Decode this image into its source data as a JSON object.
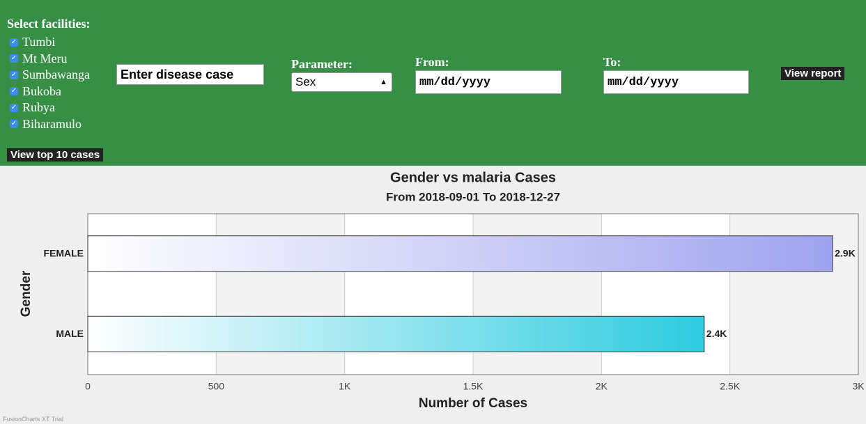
{
  "form": {
    "facilities_label": "Select facilities:",
    "facilities": [
      "Tumbi",
      "Mt Meru",
      "Sumbawanga",
      "Bukoba",
      "Rubya",
      "Biharamulo"
    ],
    "top_button": "View top 10 cases",
    "disease_input": "Enter disease case",
    "parameter_label": "Parameter:",
    "parameter_value": "Sex",
    "from_label": "From:",
    "from_placeholder": "mm/dd/yyyy",
    "to_label": "To:",
    "to_placeholder": "mm/dd/yyyy",
    "report_button": "View report"
  },
  "chart_data": {
    "type": "bar",
    "orientation": "horizontal",
    "title": "Gender vs malaria Cases",
    "subtitle": "From 2018-09-01 To 2018-12-27",
    "x_label": "Number of Cases",
    "y_label": "Gender",
    "categories": [
      "FEMALE",
      "MALE"
    ],
    "values": [
      2900,
      2400
    ],
    "value_labels": [
      "2.9K",
      "2.4K"
    ],
    "colors": [
      "#9fa3ee",
      "#2ccbdf"
    ],
    "xlim": [
      0,
      3000
    ],
    "xticks": [
      0,
      500,
      {
        "value": 1000,
        "label": "1K"
      },
      {
        "value": 1500,
        "label": "1.5K"
      },
      {
        "value": 2000,
        "label": "2K"
      },
      {
        "value": 2500,
        "label": "2.5K"
      },
      {
        "value": 3000,
        "label": "3K"
      }
    ],
    "grid": true
  },
  "footer": "FusionCharts XT Trial"
}
